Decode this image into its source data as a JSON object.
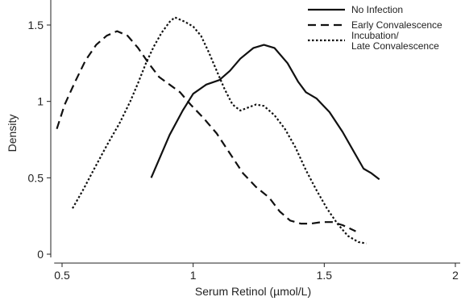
{
  "chart_data": {
    "type": "line",
    "title": "",
    "xlabel": "Serum Retinol (µmol/L)",
    "ylabel": "Density",
    "xlim": [
      0.47,
      2.0
    ],
    "ylim": [
      0,
      1.55
    ],
    "xticks": [
      0.5,
      1,
      1.5,
      2
    ],
    "xtick_labels": [
      "0.5",
      "1",
      "1.5",
      "2"
    ],
    "yticks": [
      0,
      0.5,
      1,
      1.5
    ],
    "ytick_labels": [
      "0",
      "0.5",
      "1",
      "1.5"
    ],
    "grid": false,
    "legend_position": "top-right",
    "series": [
      {
        "name": "No Infection",
        "style": "solid",
        "points": [
          [
            0.84,
            0.5
          ],
          [
            0.87,
            0.62
          ],
          [
            0.91,
            0.78
          ],
          [
            0.96,
            0.94
          ],
          [
            1.0,
            1.05
          ],
          [
            1.05,
            1.11
          ],
          [
            1.1,
            1.14
          ],
          [
            1.14,
            1.2
          ],
          [
            1.18,
            1.28
          ],
          [
            1.23,
            1.35
          ],
          [
            1.27,
            1.37
          ],
          [
            1.31,
            1.35
          ],
          [
            1.36,
            1.25
          ],
          [
            1.4,
            1.13
          ],
          [
            1.43,
            1.06
          ],
          [
            1.47,
            1.02
          ],
          [
            1.52,
            0.93
          ],
          [
            1.57,
            0.8
          ],
          [
            1.61,
            0.68
          ],
          [
            1.65,
            0.56
          ],
          [
            1.68,
            0.53
          ],
          [
            1.71,
            0.49
          ]
        ]
      },
      {
        "name": "Early Convalescence",
        "style": "dashed",
        "points": [
          [
            0.48,
            0.82
          ],
          [
            0.51,
            0.98
          ],
          [
            0.55,
            1.13
          ],
          [
            0.59,
            1.27
          ],
          [
            0.63,
            1.37
          ],
          [
            0.67,
            1.43
          ],
          [
            0.71,
            1.46
          ],
          [
            0.75,
            1.43
          ],
          [
            0.79,
            1.35
          ],
          [
            0.83,
            1.25
          ],
          [
            0.87,
            1.16
          ],
          [
            0.91,
            1.11
          ],
          [
            0.95,
            1.06
          ],
          [
            0.99,
            0.98
          ],
          [
            1.04,
            0.89
          ],
          [
            1.09,
            0.79
          ],
          [
            1.14,
            0.66
          ],
          [
            1.19,
            0.53
          ],
          [
            1.24,
            0.44
          ],
          [
            1.29,
            0.37
          ],
          [
            1.33,
            0.28
          ],
          [
            1.37,
            0.22
          ],
          [
            1.41,
            0.2
          ],
          [
            1.45,
            0.2
          ],
          [
            1.49,
            0.21
          ],
          [
            1.53,
            0.21
          ],
          [
            1.57,
            0.19
          ],
          [
            1.62,
            0.15
          ]
        ]
      },
      {
        "name": "Incubation/ Late Convalescence",
        "legend_lines": [
          "Incubation/",
          "Late Convalescence"
        ],
        "style": "dotted",
        "points": [
          [
            0.54,
            0.3
          ],
          [
            0.58,
            0.42
          ],
          [
            0.62,
            0.55
          ],
          [
            0.67,
            0.71
          ],
          [
            0.72,
            0.86
          ],
          [
            0.76,
            1.0
          ],
          [
            0.79,
            1.12
          ],
          [
            0.82,
            1.25
          ],
          [
            0.85,
            1.36
          ],
          [
            0.88,
            1.45
          ],
          [
            0.91,
            1.52
          ],
          [
            0.93,
            1.55
          ],
          [
            0.97,
            1.52
          ],
          [
            1.0,
            1.49
          ],
          [
            1.03,
            1.43
          ],
          [
            1.06,
            1.32
          ],
          [
            1.09,
            1.2
          ],
          [
            1.12,
            1.08
          ],
          [
            1.15,
            0.98
          ],
          [
            1.18,
            0.94
          ],
          [
            1.21,
            0.96
          ],
          [
            1.24,
            0.98
          ],
          [
            1.27,
            0.97
          ],
          [
            1.31,
            0.91
          ],
          [
            1.35,
            0.82
          ],
          [
            1.39,
            0.7
          ],
          [
            1.43,
            0.55
          ],
          [
            1.47,
            0.42
          ],
          [
            1.51,
            0.3
          ],
          [
            1.55,
            0.2
          ],
          [
            1.59,
            0.12
          ],
          [
            1.63,
            0.08
          ],
          [
            1.66,
            0.07
          ]
        ]
      }
    ]
  }
}
